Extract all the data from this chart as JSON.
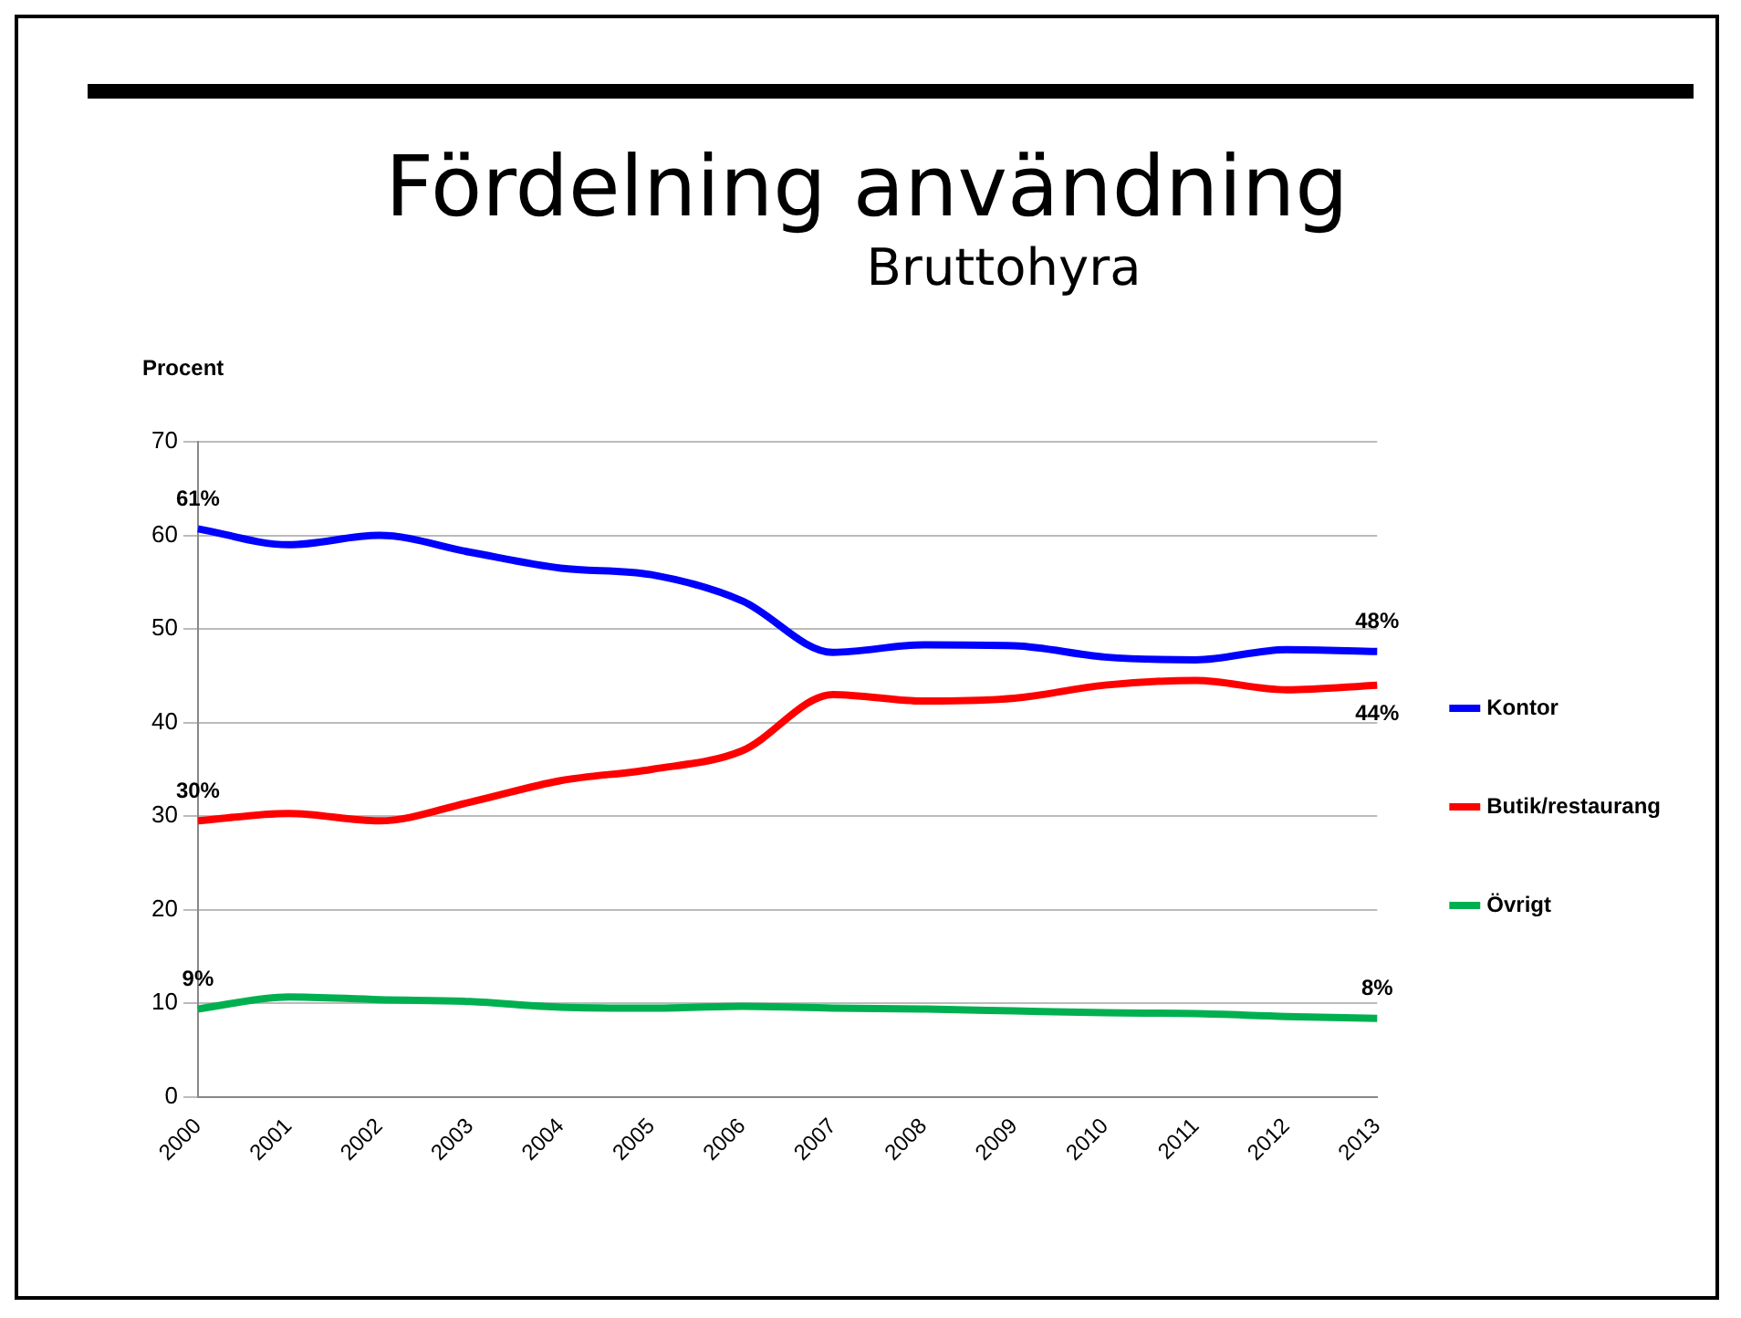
{
  "chart_data": {
    "type": "line",
    "title": "Fördelning användning",
    "subtitle": "Bruttohyra",
    "ylabel": "Procent",
    "categories": [
      "2000",
      "2001",
      "2002",
      "2003",
      "2004",
      "2005",
      "2006",
      "2007",
      "2008",
      "2009",
      "2010",
      "2011",
      "2012",
      "2013"
    ],
    "series": [
      {
        "name": "Kontor",
        "color": "#0000ff",
        "values": [
          60.7,
          59,
          60,
          58.2,
          56.5,
          55.8,
          53,
          47.5,
          48.3,
          48.2,
          47,
          46.7,
          47.8,
          47.6
        ],
        "value_labels": [
          "61%",
          null,
          null,
          null,
          null,
          null,
          null,
          null,
          null,
          null,
          null,
          null,
          null,
          "48%"
        ]
      },
      {
        "name": "Butik/restaurang",
        "color": "#ff0000",
        "values": [
          29.5,
          30.3,
          29.5,
          31.5,
          33.8,
          35,
          37,
          43,
          42.3,
          42.6,
          44,
          44.5,
          43.5,
          44
        ],
        "value_labels": [
          "30%",
          null,
          null,
          null,
          null,
          null,
          null,
          null,
          null,
          null,
          null,
          null,
          null,
          "44%"
        ]
      },
      {
        "name": "Övrigt",
        "color": "#00b050",
        "values": [
          9.4,
          10.7,
          10.4,
          10.2,
          9.6,
          9.5,
          9.7,
          9.5,
          9.4,
          9.2,
          9,
          8.9,
          8.6,
          8.4
        ],
        "value_labels": [
          "9%",
          null,
          null,
          null,
          null,
          null,
          null,
          null,
          null,
          null,
          null,
          null,
          null,
          "8%"
        ]
      }
    ],
    "ylim": [
      0,
      70
    ],
    "yticks": [
      0,
      10,
      20,
      30,
      40,
      50,
      60,
      70
    ],
    "grid": "y",
    "legend": "right",
    "marker": "none",
    "line_style": "solid"
  }
}
